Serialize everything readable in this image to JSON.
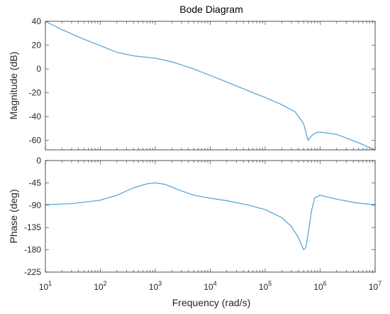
{
  "chart_data": {
    "type": "line",
    "title": "Bode Diagram",
    "xlabel": "Frequency  (rad/s)",
    "x_scale": "log",
    "xlim": [
      10,
      10000000
    ],
    "x_ticks": [
      {
        "base": "10",
        "exp": "1"
      },
      {
        "base": "10",
        "exp": "2"
      },
      {
        "base": "10",
        "exp": "3"
      },
      {
        "base": "10",
        "exp": "4"
      },
      {
        "base": "10",
        "exp": "5"
      },
      {
        "base": "10",
        "exp": "6"
      },
      {
        "base": "10",
        "exp": "7"
      }
    ],
    "line_color": "#4f9fd6",
    "grid": false,
    "panels": [
      {
        "ylabel": "Magnitude (dB)",
        "ylim": [
          -68,
          40
        ],
        "yticks": [
          40,
          20,
          0,
          -20,
          -40,
          -60
        ],
        "series": [
          {
            "x": [
              10,
              20,
              50,
              100,
              200,
              400,
              1000,
              2000,
              5000,
              10000,
              20000,
              50000,
              100000,
              200000,
              350000,
              500000,
              600000,
              700000,
              850000,
              1000000,
              2000000,
              5000000,
              10000000
            ],
            "values": [
              40,
              33,
              25,
              19.5,
              14,
              11,
              9,
              6,
              0,
              -5.5,
              -11,
              -18.5,
              -24,
              -30,
              -36,
              -46,
              -60,
              -56,
              -53.5,
              -53,
              -55,
              -62,
              -68
            ]
          }
        ]
      },
      {
        "ylabel": "Phase (deg)",
        "ylim": [
          -225,
          0
        ],
        "yticks": [
          0,
          -45,
          -90,
          -135,
          -180,
          -225
        ],
        "series": [
          {
            "x": [
              10,
              30,
              100,
              200,
              400,
              700,
              1000,
              1500,
              2500,
              5000,
              10000,
              20000,
              50000,
              100000,
              200000,
              300000,
              400000,
              500000,
              550000,
              600000,
              700000,
              800000,
              1000000,
              2000000,
              5000000,
              10000000
            ],
            "values": [
              -89,
              -87,
              -80,
              -70,
              -55,
              -47,
              -45,
              -48,
              -58,
              -70,
              -76,
              -81,
              -90,
              -99,
              -115,
              -133,
              -155,
              -180,
              -175,
              -150,
              -100,
              -75,
              -70,
              -78,
              -86,
              -89
            ]
          }
        ]
      }
    ]
  }
}
